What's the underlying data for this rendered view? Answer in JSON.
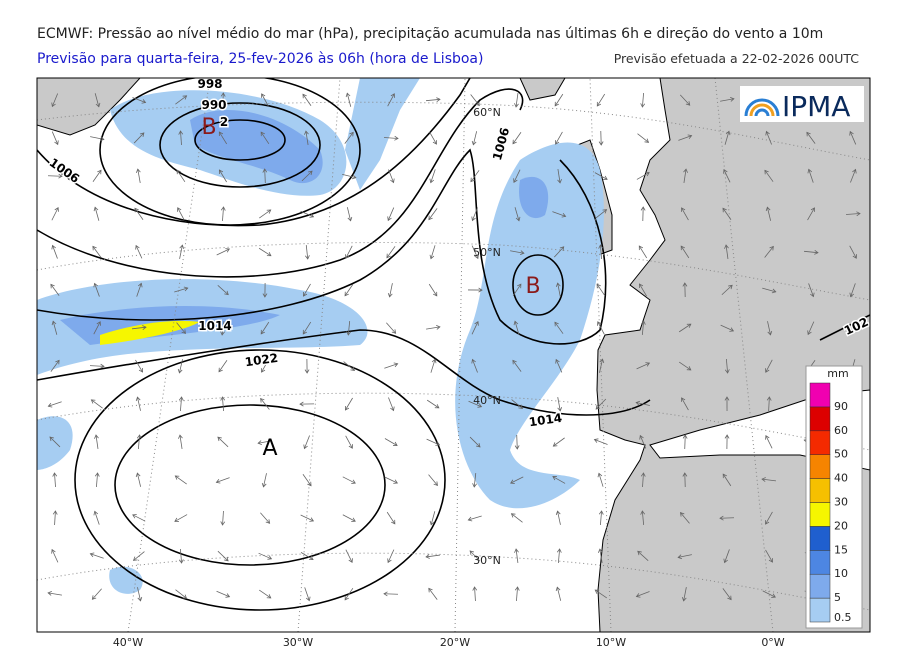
{
  "header": {
    "title": "ECMWF: Pressão ao nível médio do mar (hPa), precipitação acumulada nas últimas 6h e direção do vento a 10m",
    "subtitle": "Previsão para quarta-feira, 25-fev-2026 às 06h (hora de Lisboa)",
    "issued": "Previsão efetuada a 22-02-2026 00UTC"
  },
  "logo": "IPMA",
  "map": {
    "pressure_labels": [
      "998",
      "990",
      "2",
      "1006",
      "1006",
      "1014",
      "1022",
      "1014",
      "102"
    ],
    "centers": [
      "B",
      "B",
      "A"
    ],
    "lat_labels": [
      "60°N",
      "50°N",
      "40°N",
      "30°N"
    ],
    "lon_labels": [
      "40°W",
      "30°W",
      "20°W",
      "10°W",
      "0°W"
    ]
  },
  "colorbar": {
    "unit": "mm",
    "levels": [
      0.5,
      5,
      10,
      15,
      20,
      30,
      40,
      50,
      60,
      90
    ],
    "colors": [
      "#a6cdf2",
      "#7eaaec",
      "#4d86e2",
      "#1f5fcf",
      "#f6f600",
      "#f6c000",
      "#f68400",
      "#f42a00",
      "#dd0000",
      "#f000b0"
    ]
  }
}
